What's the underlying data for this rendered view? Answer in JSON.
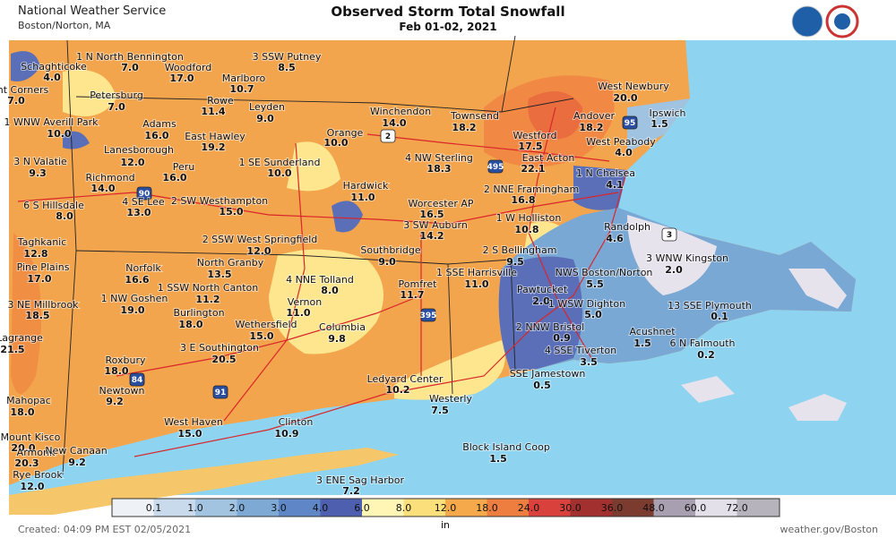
{
  "header": {
    "agency": "National Weather Service",
    "office": "Boston/Norton, MA",
    "title": "Observed Storm Total Snowfall",
    "subtitle": "Feb 01-02, 2021"
  },
  "stations": [
    {
      "name": "1 N North Bennington",
      "value": "7.0"
    },
    {
      "name": "Schaghticoke",
      "value": "4.0"
    },
    {
      "name": "Woodford",
      "value": "17.0"
    },
    {
      "name": "3 SSW Putney",
      "value": "8.5"
    },
    {
      "name": "Marlboro",
      "value": "10.7"
    },
    {
      "name": "ght Corners",
      "value": "7.0"
    },
    {
      "name": "Petersburg",
      "value": "7.0"
    },
    {
      "name": "Rowe",
      "value": "11.4"
    },
    {
      "name": "Leyden",
      "value": "9.0"
    },
    {
      "name": "Winchendon",
      "value": "14.0"
    },
    {
      "name": "Townsend",
      "value": "18.2"
    },
    {
      "name": "West Newbury",
      "value": "20.0"
    },
    {
      "name": "Andover",
      "value": "18.2"
    },
    {
      "name": "Ipswich",
      "value": "1.5"
    },
    {
      "name": "1 WNW Averill Park",
      "value": "10.0"
    },
    {
      "name": "Adams",
      "value": "16.0"
    },
    {
      "name": "East Hawley",
      "value": "19.2"
    },
    {
      "name": "Orange",
      "value": "10.0"
    },
    {
      "name": "Westford",
      "value": "17.5"
    },
    {
      "name": "West Peabody",
      "value": "4.0"
    },
    {
      "name": "Lanesborough",
      "value": "12.0"
    },
    {
      "name": "3 N Valatie",
      "value": "9.3"
    },
    {
      "name": "Peru",
      "value": "16.0"
    },
    {
      "name": "1 SE Sunderland",
      "value": "10.0"
    },
    {
      "name": "4 NW Sterling",
      "value": "18.3"
    },
    {
      "name": "East Acton",
      "value": "22.1"
    },
    {
      "name": "1 N Chelsea",
      "value": "4.1"
    },
    {
      "name": "Richmond",
      "value": "14.0"
    },
    {
      "name": "4 SE Lee",
      "value": "13.0"
    },
    {
      "name": "2 SW Westhampton",
      "value": "15.0"
    },
    {
      "name": "Hardwick",
      "value": "11.0"
    },
    {
      "name": "2 NNE Framingham",
      "value": "16.8"
    },
    {
      "name": "6 S Hillsdale",
      "value": "8.0"
    },
    {
      "name": "Worcester AP",
      "value": "16.5"
    },
    {
      "name": "1 W Holliston",
      "value": "10.8"
    },
    {
      "name": "3 SW Auburn",
      "value": "14.2"
    },
    {
      "name": "Randolph",
      "value": "4.6"
    },
    {
      "name": "2 SSW West Springfield",
      "value": "12.0"
    },
    {
      "name": "Taghkanic",
      "value": "12.8"
    },
    {
      "name": "Southbridge",
      "value": "9.0"
    },
    {
      "name": "2 S Bellingham",
      "value": "9.5"
    },
    {
      "name": "3 WNW Kingston",
      "value": "2.0"
    },
    {
      "name": "North Granby",
      "value": "13.5"
    },
    {
      "name": "Pine Plains",
      "value": "17.0"
    },
    {
      "name": "Norfolk",
      "value": "16.6"
    },
    {
      "name": "NWS Boston/Norton",
      "value": "5.5"
    },
    {
      "name": "1 SSW North Canton",
      "value": "11.2"
    },
    {
      "name": "4 NNE Tolland",
      "value": "8.0"
    },
    {
      "name": "1 SSE Harrisville",
      "value": "11.0"
    },
    {
      "name": "Pomfret",
      "value": "11.7"
    },
    {
      "name": "Pawtucket",
      "value": "2.0"
    },
    {
      "name": "3 NE Millbrook",
      "value": "18.5"
    },
    {
      "name": "1 NW Goshen",
      "value": "19.0"
    },
    {
      "name": "1 WSW Dighton",
      "value": "5.0"
    },
    {
      "name": "13 SSE Plymouth",
      "value": "0.1"
    },
    {
      "name": "Vernon",
      "value": "11.0"
    },
    {
      "name": "Burlington",
      "value": "18.0"
    },
    {
      "name": "Wethersfield",
      "value": "15.0"
    },
    {
      "name": "Columbia",
      "value": "9.8"
    },
    {
      "name": "2 NNW Bristol",
      "value": "0.9"
    },
    {
      "name": "Acushnet",
      "value": "1.5"
    },
    {
      "name": "Lagrange",
      "value": "21.5"
    },
    {
      "name": "6 N Falmouth",
      "value": "0.2"
    },
    {
      "name": "3 E Southington",
      "value": "20.5"
    },
    {
      "name": "4 SSE Tiverton",
      "value": "3.5"
    },
    {
      "name": "Roxbury",
      "value": "18.0"
    },
    {
      "name": "SSE Jamestown",
      "value": "0.5"
    },
    {
      "name": "Ledyard Center",
      "value": "10.2"
    },
    {
      "name": "Newtown",
      "value": "9.2"
    },
    {
      "name": "Mahopac",
      "value": "18.0"
    },
    {
      "name": "Westerly",
      "value": "7.5"
    },
    {
      "name": "West Haven",
      "value": "15.0"
    },
    {
      "name": "Clinton",
      "value": "10.9"
    },
    {
      "name": "Mount Kisco",
      "value": "20.0"
    },
    {
      "name": "Block Island Coop",
      "value": "1.5"
    },
    {
      "name": "Armonk",
      "value": "20.3"
    },
    {
      "name": "New Canaan",
      "value": "9.2"
    },
    {
      "name": "Rye Brook",
      "value": "12.0"
    },
    {
      "name": "3 ENE Sag Harbor",
      "value": "7.2"
    }
  ],
  "routes": [
    "2",
    "495",
    "90",
    "95",
    "395",
    "84",
    "91",
    "3"
  ],
  "legend": {
    "labels": [
      "0.1",
      "1.0",
      "2.0",
      "3.0",
      "4.0",
      "6.0",
      "8.0",
      "12.0",
      "18.0",
      "24.0",
      "30.0",
      "36.0",
      "48.0",
      "60.0",
      "72.0"
    ],
    "unit": "in"
  },
  "footer": {
    "created": "Created: 04:09 PM EST 02/05/2021",
    "site": "weather.gov/Boston"
  }
}
